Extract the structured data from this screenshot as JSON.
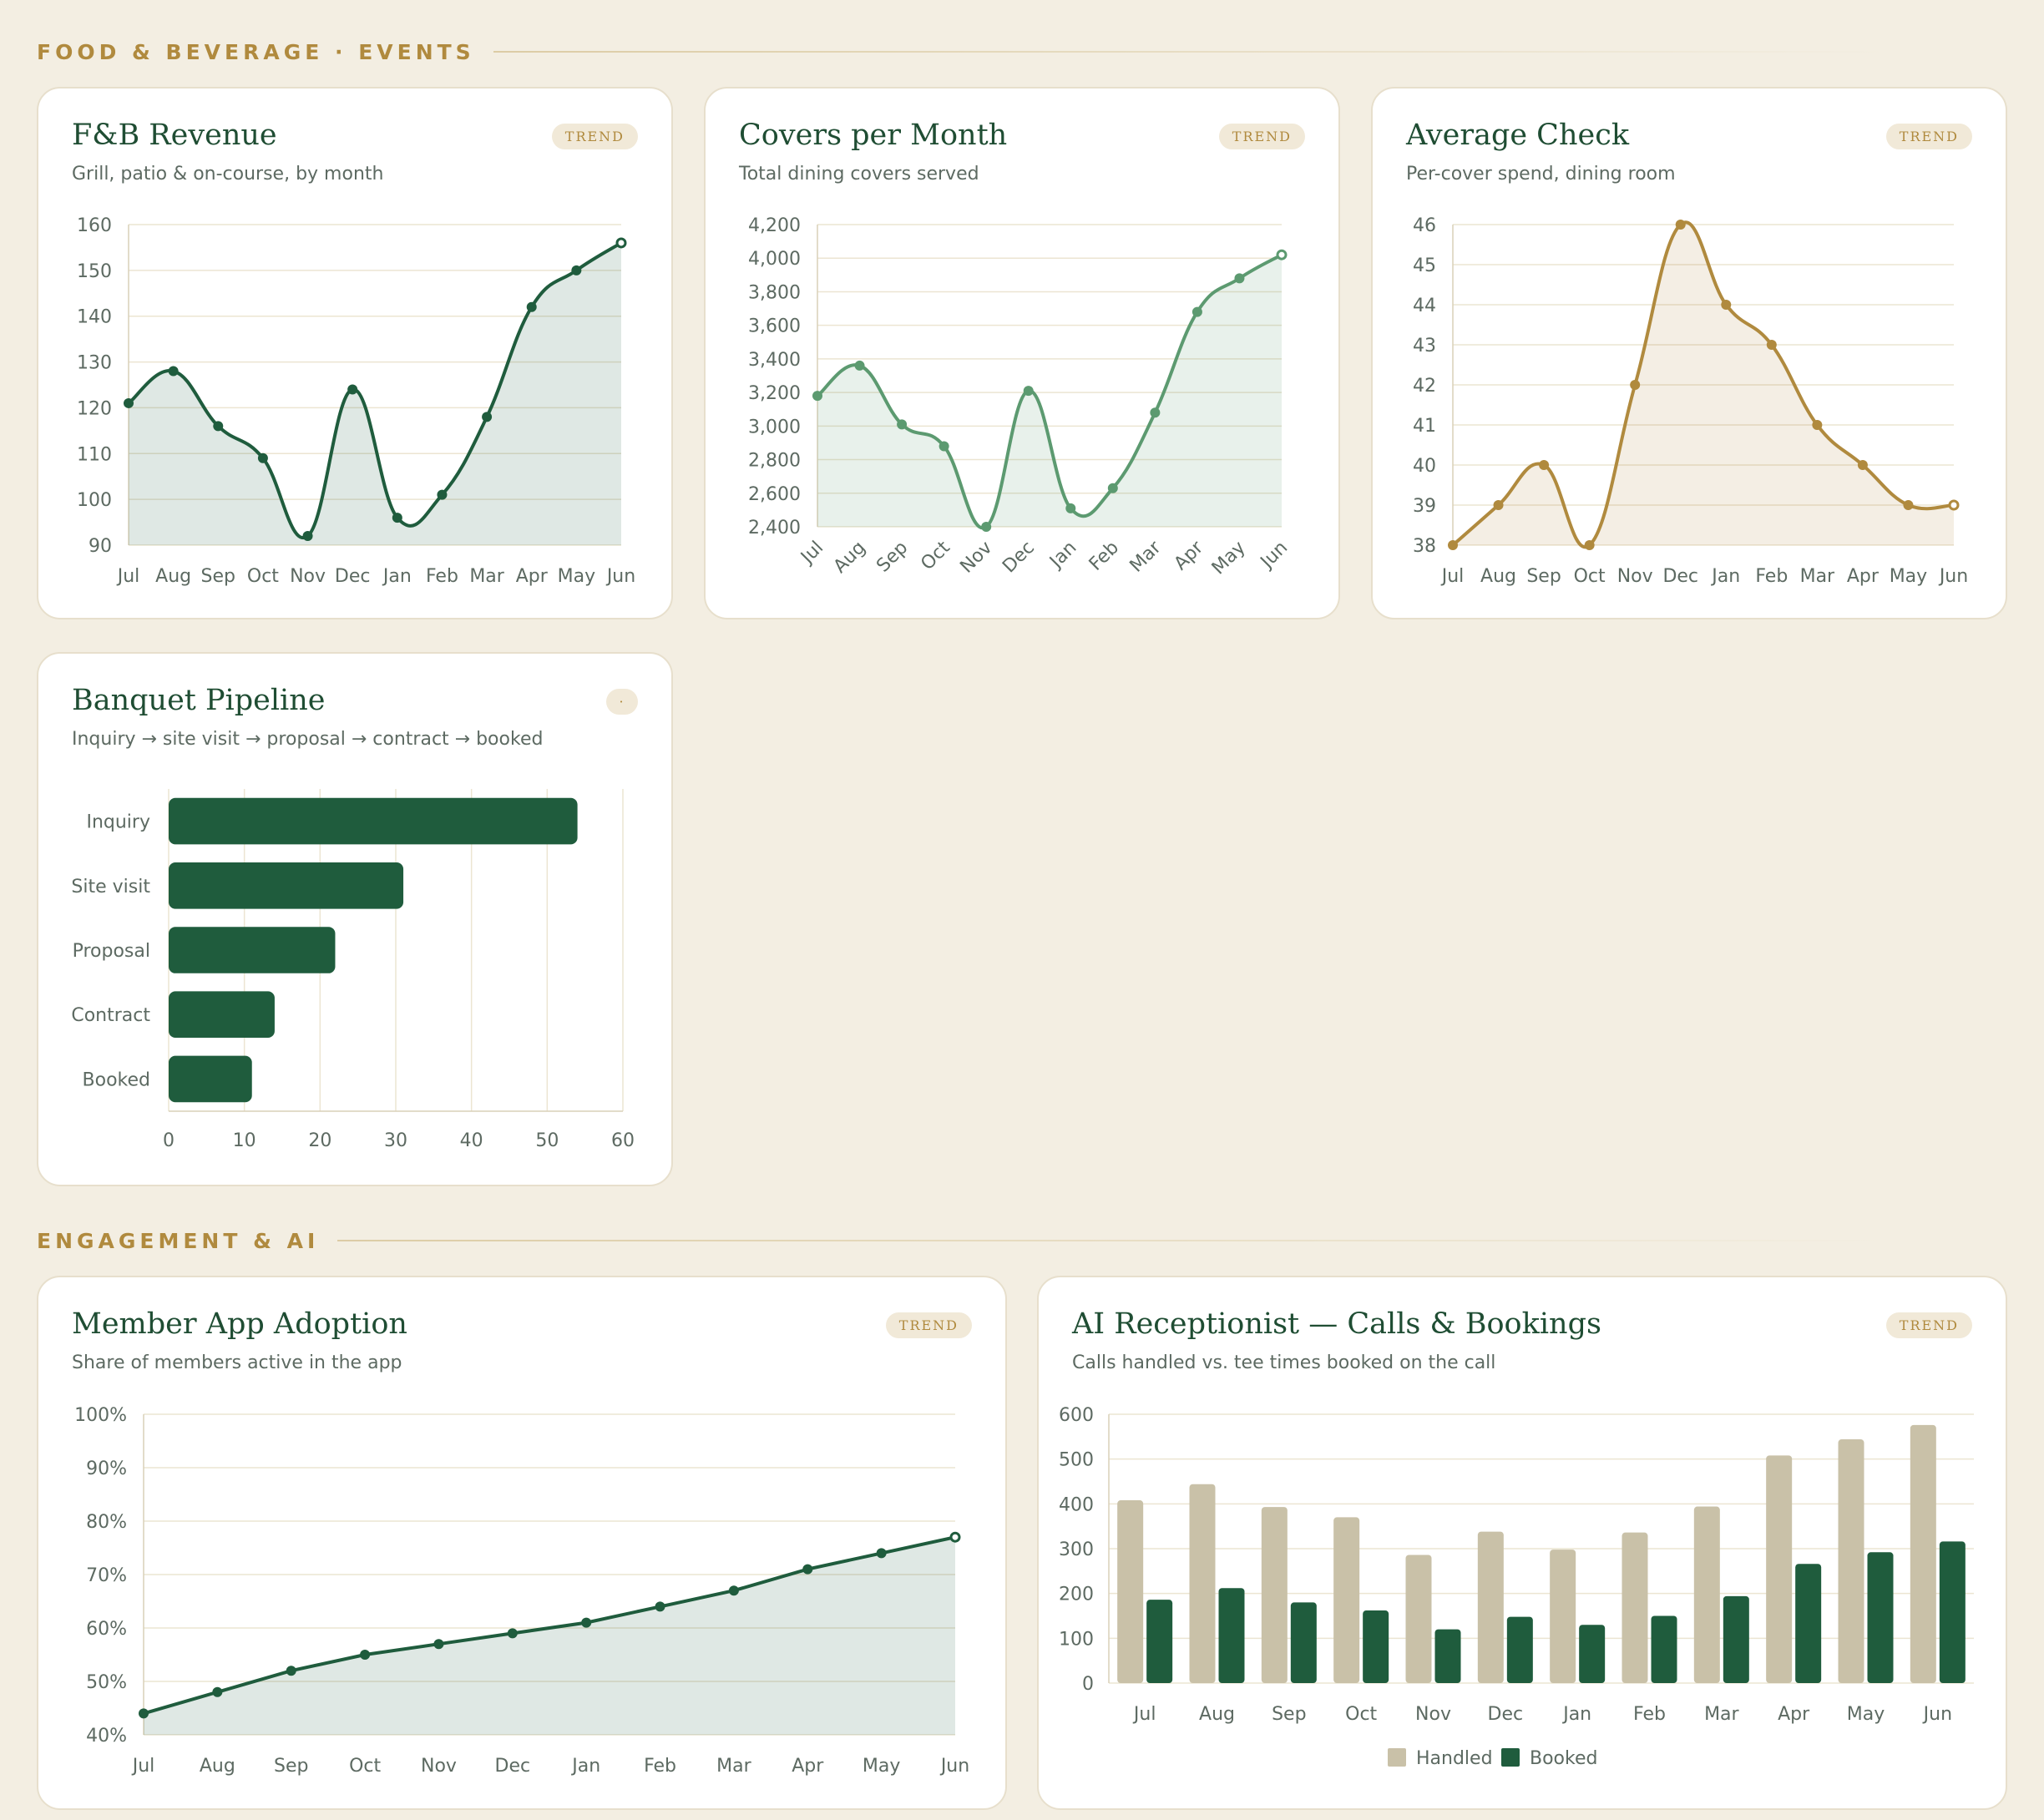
{
  "sections": {
    "fnb": "FOOD & BEVERAGE · EVENTS",
    "engagement": "ENGAGEMENT & AI"
  },
  "colors": {
    "page_bg": "#f3eee2",
    "dark_green": "#1f5c3d",
    "mid_green": "#5c9a70",
    "gold": "#b08a3e",
    "tan": "#c9c1a8",
    "grid": "#ece5d2"
  },
  "cards": {
    "fnb_revenue": {
      "title": "F&B Revenue",
      "subtitle": "Grill, patio & on-course, by month",
      "badge": "TREND"
    },
    "covers": {
      "title": "Covers per Month",
      "subtitle": "Total dining covers served",
      "badge": "TREND"
    },
    "avg_check": {
      "title": "Average Check",
      "subtitle": "Per-cover spend, dining room",
      "badge": "TREND"
    },
    "banquet": {
      "title": "Banquet Pipeline",
      "subtitle": "Inquiry → site visit → proposal → contract → booked",
      "badge": "·"
    },
    "app_adoption": {
      "title": "Member App Adoption",
      "subtitle": "Share of members active in the app",
      "badge": "TREND"
    },
    "ai_receptionist": {
      "title": "AI Receptionist — Calls & Bookings",
      "subtitle": "Calls handled vs. tee times booked on the call",
      "badge": "TREND"
    }
  },
  "chart_data": [
    {
      "id": "fnb_revenue",
      "type": "area",
      "x": [
        "Jul",
        "Aug",
        "Sep",
        "Oct",
        "Nov",
        "Dec",
        "Jan",
        "Feb",
        "Mar",
        "Apr",
        "May",
        "Jun"
      ],
      "series": [
        {
          "values": [
            121,
            128,
            116,
            109,
            92,
            124,
            96,
            101,
            118,
            142,
            150,
            156
          ]
        }
      ],
      "ylim": [
        90,
        160
      ],
      "yticks": [
        90,
        100,
        110,
        120,
        130,
        140,
        150,
        160
      ],
      "color": "#1f5c3d",
      "grid": true
    },
    {
      "id": "covers",
      "type": "area",
      "x": [
        "Jul",
        "Aug",
        "Sep",
        "Oct",
        "Nov",
        "Dec",
        "Jan",
        "Feb",
        "Mar",
        "Apr",
        "May",
        "Jun"
      ],
      "series": [
        {
          "values": [
            3180,
            3360,
            3010,
            2880,
            2400,
            3210,
            2510,
            2630,
            3080,
            3680,
            3880,
            4020
          ]
        }
      ],
      "ylim": [
        2400,
        4200
      ],
      "yticks": [
        "2,400",
        "2,600",
        "2,800",
        "3,000",
        "3,200",
        "3,400",
        "3,600",
        "3,800",
        "4,000",
        "4,200"
      ],
      "color": "#5c9a70",
      "grid": true
    },
    {
      "id": "avg_check",
      "type": "area",
      "x": [
        "Jul",
        "Aug",
        "Sep",
        "Oct",
        "Nov",
        "Dec",
        "Jan",
        "Feb",
        "Mar",
        "Apr",
        "May",
        "Jun"
      ],
      "series": [
        {
          "values": [
            38,
            39,
            40,
            38,
            42,
            46,
            44,
            43,
            41,
            40,
            39,
            39
          ]
        }
      ],
      "ylim": [
        38,
        46
      ],
      "yticks": [
        38,
        39,
        40,
        41,
        42,
        43,
        44,
        45,
        46
      ],
      "color": "#b08a3e",
      "grid": true
    },
    {
      "id": "banquet",
      "type": "bar",
      "orientation": "horizontal",
      "categories": [
        "Inquiry",
        "Site visit",
        "Proposal",
        "Contract",
        "Booked"
      ],
      "values": [
        54,
        31,
        22,
        14,
        11
      ],
      "xlim": [
        0,
        60
      ],
      "xticks": [
        0,
        10,
        20,
        30,
        40,
        50,
        60
      ],
      "color": "#1f5c3d",
      "grid": true
    },
    {
      "id": "app_adoption",
      "type": "area",
      "x": [
        "Jul",
        "Aug",
        "Sep",
        "Oct",
        "Nov",
        "Dec",
        "Jan",
        "Feb",
        "Mar",
        "Apr",
        "May",
        "Jun"
      ],
      "series": [
        {
          "values": [
            44,
            48,
            52,
            55,
            57,
            59,
            61,
            64,
            67,
            71,
            74,
            77
          ]
        }
      ],
      "ylim": [
        40,
        100
      ],
      "yticks": [
        "40%",
        "50%",
        "60%",
        "70%",
        "80%",
        "90%",
        "100%"
      ],
      "color": "#1f5c3d",
      "grid": true
    },
    {
      "id": "ai_receptionist",
      "type": "bar",
      "categories": [
        "Jul",
        "Aug",
        "Sep",
        "Oct",
        "Nov",
        "Dec",
        "Jan",
        "Feb",
        "Mar",
        "Apr",
        "May",
        "Jun"
      ],
      "series": [
        {
          "name": "Handled",
          "values": [
            408,
            444,
            393,
            370,
            286,
            338,
            298,
            336,
            394,
            508,
            544,
            576
          ],
          "color": "#c9c1a8"
        },
        {
          "name": "Booked",
          "values": [
            186,
            212,
            180,
            162,
            120,
            148,
            130,
            150,
            194,
            266,
            292,
            316
          ],
          "color": "#1f5c3d"
        }
      ],
      "ylim": [
        0,
        600
      ],
      "yticks": [
        0,
        100,
        200,
        300,
        400,
        500,
        600
      ],
      "legend": "bottom",
      "grid": true
    }
  ]
}
